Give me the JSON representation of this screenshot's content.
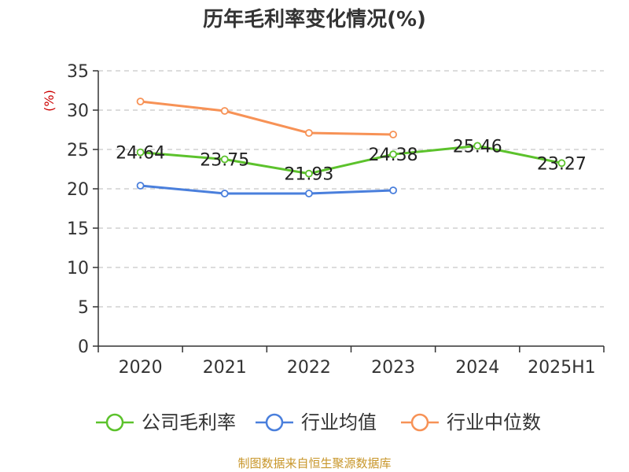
{
  "chart_data": {
    "type": "line",
    "title": "历年毛利率变化情况(%)",
    "ylabel": "(%)",
    "categories": [
      "2020",
      "2021",
      "2022",
      "2023",
      "2024",
      "2025H1"
    ],
    "ylim": [
      0,
      35
    ],
    "yticks": [
      0,
      5,
      10,
      15,
      20,
      25,
      30,
      35
    ],
    "grid": true,
    "legend_position": "bottom",
    "series": [
      {
        "name": "公司毛利率",
        "color": "#5cc22c",
        "values": [
          24.64,
          23.75,
          21.93,
          24.38,
          25.46,
          23.27
        ],
        "data_labels": [
          "24.64",
          "23.75",
          "21.93",
          "24.38",
          "25.46",
          "23.27"
        ]
      },
      {
        "name": "行业均值",
        "color": "#4a7fdc",
        "values": [
          20.4,
          19.4,
          19.4,
          19.8,
          null,
          null
        ]
      },
      {
        "name": "行业中位数",
        "color": "#f79256",
        "values": [
          31.1,
          29.9,
          27.1,
          26.9,
          null,
          null
        ]
      }
    ]
  },
  "footer": {
    "source": "制图数据来自恒生聚源数据库"
  }
}
